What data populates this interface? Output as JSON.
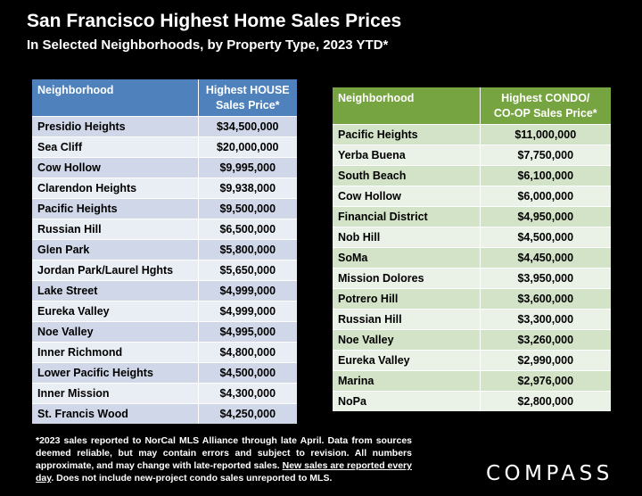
{
  "header": {
    "title": "San Francisco Highest Home Sales Prices",
    "subtitle": "In Selected Neighborhoods, by Property Type, 2023 YTD*"
  },
  "house_table": {
    "col1_header": "Neighborhood",
    "col2_header": "Highest HOUSE Sales Price*",
    "rows": [
      {
        "neighborhood": "Presidio Heights",
        "price": "$34,500,000"
      },
      {
        "neighborhood": "Sea Cliff",
        "price": "$20,000,000"
      },
      {
        "neighborhood": "Cow Hollow",
        "price": "$9,995,000"
      },
      {
        "neighborhood": "Clarendon Heights",
        "price": "$9,938,000"
      },
      {
        "neighborhood": "Pacific Heights",
        "price": "$9,500,000"
      },
      {
        "neighborhood": "Russian Hill",
        "price": "$6,500,000"
      },
      {
        "neighborhood": "Glen Park",
        "price": "$5,800,000"
      },
      {
        "neighborhood": "Jordan Park/Laurel Hghts",
        "price": "$5,650,000"
      },
      {
        "neighborhood": "Lake Street",
        "price": "$4,999,000"
      },
      {
        "neighborhood": "Eureka Valley",
        "price": "$4,999,000"
      },
      {
        "neighborhood": "Noe Valley",
        "price": "$4,995,000"
      },
      {
        "neighborhood": "Inner Richmond",
        "price": "$4,800,000"
      },
      {
        "neighborhood": "Lower Pacific Heights",
        "price": "$4,500,000"
      },
      {
        "neighborhood": "Inner Mission",
        "price": "$4,300,000"
      },
      {
        "neighborhood": "St. Francis Wood",
        "price": "$4,250,000"
      }
    ]
  },
  "condo_table": {
    "col1_header": "Neighborhood",
    "col2_header_line1": "Highest CONDO/",
    "col2_header_line2": "CO-OP Sales Price*",
    "rows": [
      {
        "neighborhood": "Pacific Heights",
        "price": "$11,000,000"
      },
      {
        "neighborhood": "Yerba Buena",
        "price": "$7,750,000"
      },
      {
        "neighborhood": "South Beach",
        "price": "$6,100,000"
      },
      {
        "neighborhood": "Cow Hollow",
        "price": "$6,000,000"
      },
      {
        "neighborhood": "Financial District",
        "price": "$4,950,000"
      },
      {
        "neighborhood": "Nob Hill",
        "price": "$4,500,000"
      },
      {
        "neighborhood": "SoMa",
        "price": "$4,450,000"
      },
      {
        "neighborhood": "Mission Dolores",
        "price": "$3,950,000"
      },
      {
        "neighborhood": "Potrero Hill",
        "price": "$3,600,000"
      },
      {
        "neighborhood": "Russian Hill",
        "price": "$3,300,000"
      },
      {
        "neighborhood": "Noe Valley",
        "price": "$3,260,000"
      },
      {
        "neighborhood": "Eureka Valley",
        "price": "$2,990,000"
      },
      {
        "neighborhood": "Marina",
        "price": "$2,976,000"
      },
      {
        "neighborhood": "NoPa",
        "price": "$2,800,000"
      }
    ]
  },
  "footnote": {
    "text_before": "*2023 sales reported to NorCal MLS Alliance through late April. Data from sources deemed reliable, but may contain errors and subject to revision. All numbers approximate, and may change with late-reported sales. ",
    "underlined": "New sales are reported every day",
    "text_after": ". Does not include new-project condo sales unreported to MLS."
  },
  "logo": {
    "text": "COMPASS"
  },
  "colors": {
    "background": "#000000",
    "house_header": "#4f81bd",
    "house_row_dark": "#cfd7e8",
    "house_row_light": "#e9edf4",
    "condo_header": "#76a440",
    "condo_row_dark": "#d3e3c7",
    "condo_row_light": "#eaf1e6"
  }
}
